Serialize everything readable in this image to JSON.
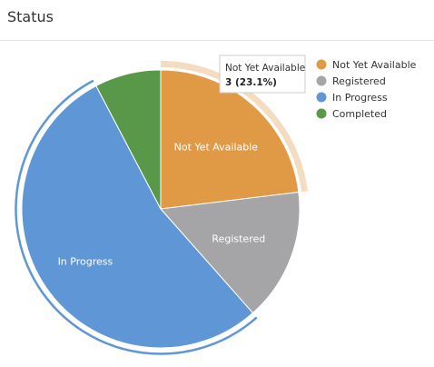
{
  "panel": {
    "title": "Status"
  },
  "chart_data": {
    "type": "pie",
    "categories": [
      "Not Yet Available",
      "Registered",
      "In Progress",
      "Completed"
    ],
    "values": [
      3,
      2,
      7,
      1
    ],
    "colors": [
      "#e09a45",
      "#a5a5a8",
      "#5f97d6",
      "#589848"
    ],
    "slice_labels": [
      "Not Yet Available",
      "Registered",
      "In Progress",
      ""
    ],
    "legend": {
      "position": "top-right",
      "entries": [
        "Not Yet Available",
        "Registered",
        "In Progress",
        "Completed"
      ]
    },
    "start_angle_deg": 0,
    "direction": "clockwise",
    "highlighted_slice": 0,
    "selected_slice": 2,
    "tooltip": {
      "title": "Not Yet Available",
      "value": "3 (23.1%)"
    }
  }
}
